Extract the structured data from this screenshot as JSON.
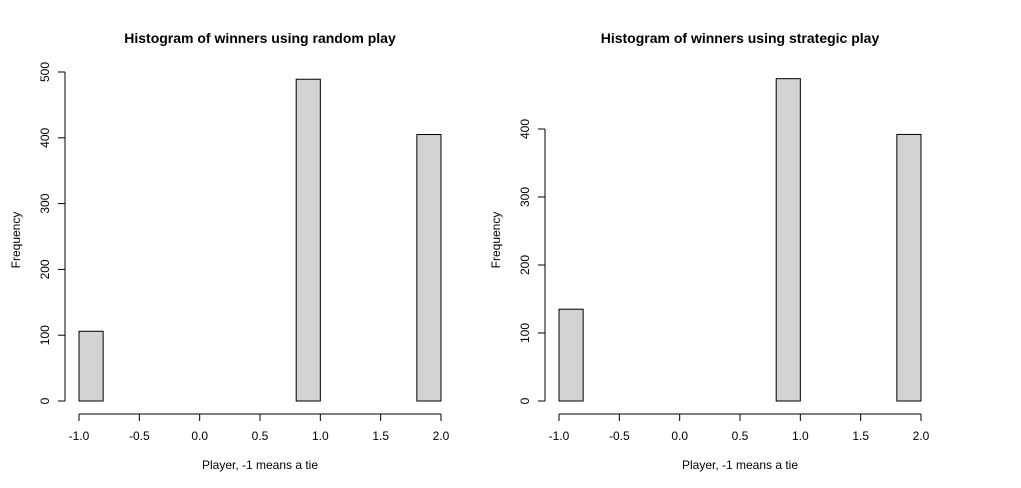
{
  "chart_data": [
    {
      "type": "bar",
      "title": "Histogram of winners using random play",
      "xlabel": "Player, -1 means a tie",
      "ylabel": "Frequency",
      "bin_edges": [
        -1.0,
        -0.8,
        -0.6,
        -0.4,
        -0.2,
        0.0,
        0.2,
        0.4,
        0.6,
        0.8,
        1.0,
        1.2,
        1.4,
        1.6,
        1.8,
        2.0
      ],
      "values": [
        106,
        0,
        0,
        0,
        0,
        0,
        0,
        0,
        0,
        489,
        0,
        0,
        0,
        0,
        405
      ],
      "xlim": [
        -1.0,
        2.0
      ],
      "ylim": [
        0,
        500
      ],
      "x_ticks": [
        -1.0,
        -0.5,
        0.0,
        0.5,
        1.0,
        1.5,
        2.0
      ],
      "x_tick_labels": [
        "-1.0",
        "-0.5",
        "0.0",
        "0.5",
        "1.0",
        "1.5",
        "2.0"
      ],
      "y_ticks": [
        0,
        100,
        200,
        300,
        400,
        500
      ],
      "y_tick_labels": [
        "0",
        "100",
        "200",
        "300",
        "400",
        "500"
      ],
      "grid": false
    },
    {
      "type": "bar",
      "title": "Histogram of winners using strategic play",
      "xlabel": "Player, -1 means a tie",
      "ylabel": "Frequency",
      "bin_edges": [
        -1.0,
        -0.8,
        -0.6,
        -0.4,
        -0.2,
        0.0,
        0.2,
        0.4,
        0.6,
        0.8,
        1.0,
        1.2,
        1.4,
        1.6,
        1.8,
        2.0
      ],
      "values": [
        135,
        0,
        0,
        0,
        0,
        0,
        0,
        0,
        0,
        474,
        0,
        0,
        0,
        0,
        392
      ],
      "xlim": [
        -1.0,
        2.0
      ],
      "ylim": [
        0,
        400
      ],
      "x_ticks": [
        -1.0,
        -0.5,
        0.0,
        0.5,
        1.0,
        1.5,
        2.0
      ],
      "x_tick_labels": [
        "-1.0",
        "-0.5",
        "0.0",
        "0.5",
        "1.0",
        "1.5",
        "2.0"
      ],
      "y_ticks": [
        0,
        100,
        200,
        300,
        400
      ],
      "y_tick_labels": [
        "0",
        "100",
        "200",
        "300",
        "400"
      ],
      "grid": false
    }
  ]
}
